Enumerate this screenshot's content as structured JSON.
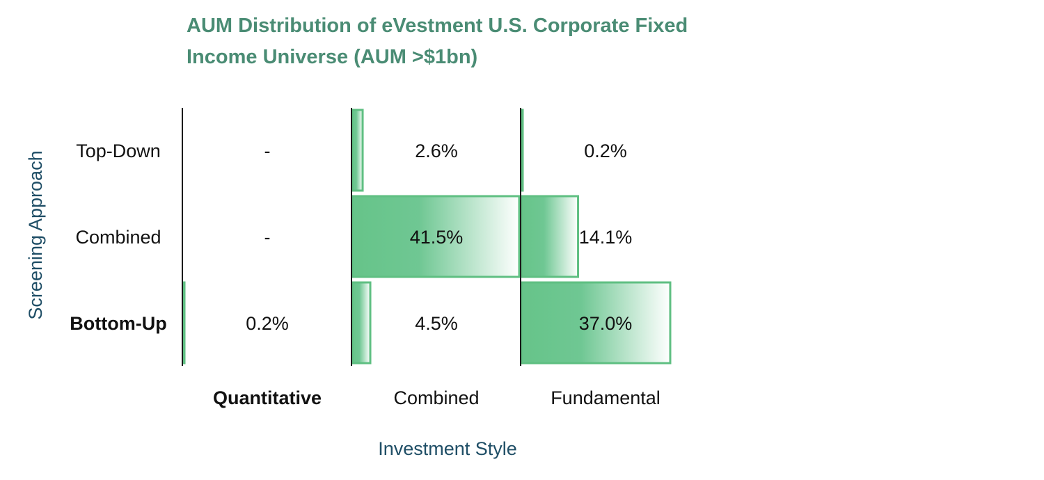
{
  "chart_data": {
    "type": "table",
    "title_lines": [
      "AUM Distribution of eVestment U.S. Corporate Fixed",
      "Income Universe (AUM >$1bn)"
    ],
    "xlabel": "Investment Style",
    "ylabel": "Screening Approach",
    "columns": [
      "Quantitative",
      "Combined",
      "Fundamental"
    ],
    "rows": [
      "Top-Down",
      "Combined",
      "Bottom-Up"
    ],
    "bold_columns": [
      "Quantitative"
    ],
    "bold_rows": [
      "Bottom-Up"
    ],
    "cells": [
      [
        {
          "label": "-",
          "value": null
        },
        {
          "label": "2.6%",
          "value": 2.6
        },
        {
          "label": "0.2%",
          "value": 0.2
        }
      ],
      [
        {
          "label": "-",
          "value": null
        },
        {
          "label": "41.5%",
          "value": 41.5
        },
        {
          "label": "14.1%",
          "value": 14.1
        }
      ],
      [
        {
          "label": "0.2%",
          "value": 0.2
        },
        {
          "label": "4.5%",
          "value": 4.5
        },
        {
          "label": "37.0%",
          "value": 37.0
        }
      ]
    ],
    "colors": {
      "title": "#4a8c74",
      "axis_label": "#1f4e66",
      "bar_fill": "#66c489",
      "bar_stroke": "#5fbf82",
      "separator": "#1a1a1a",
      "text": "#111111"
    }
  }
}
